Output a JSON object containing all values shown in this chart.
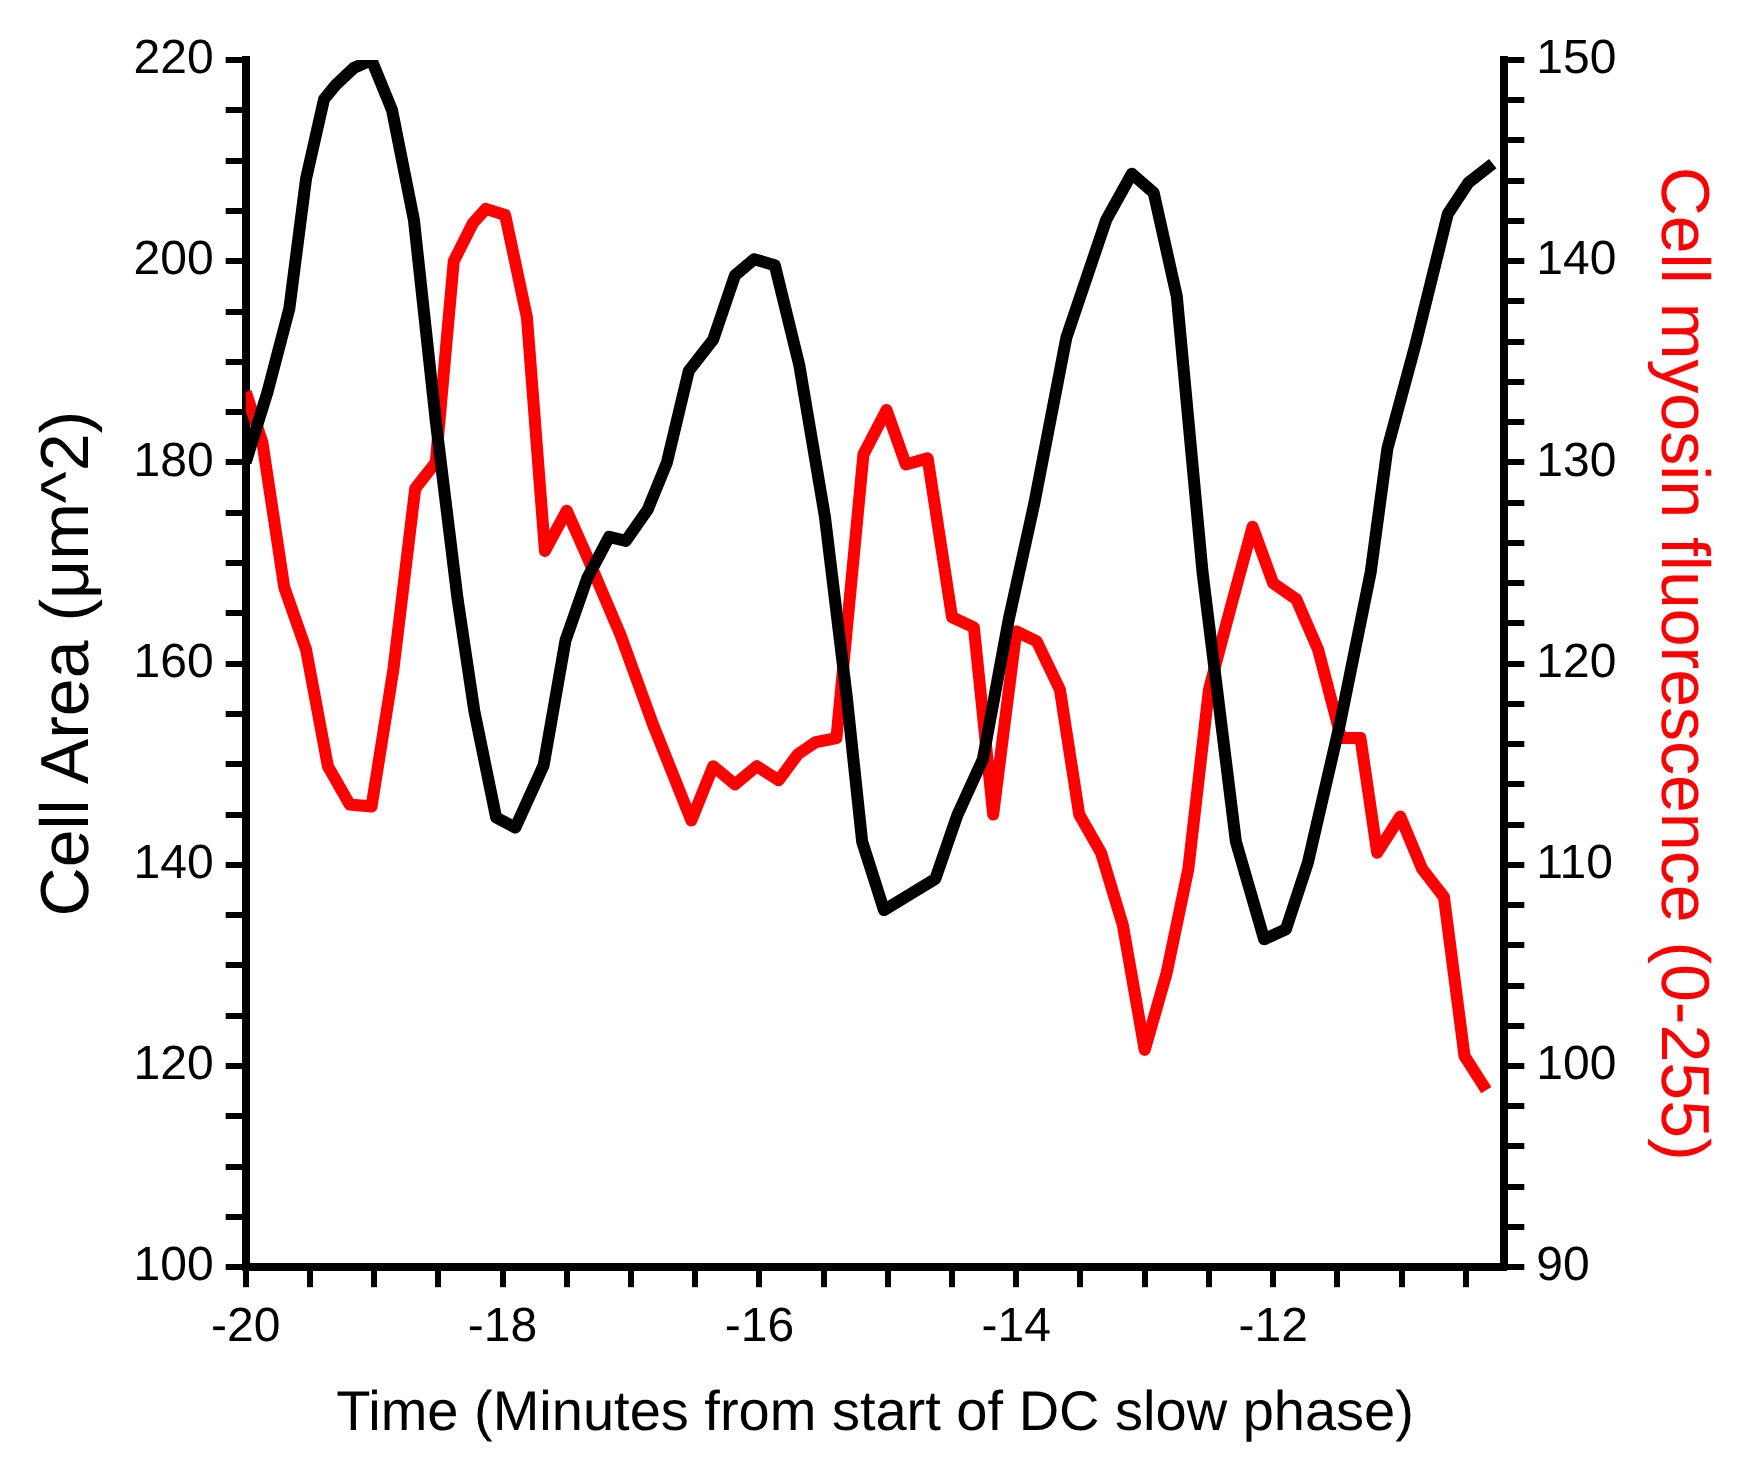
{
  "chart_data": {
    "type": "line",
    "xlabel": "Time (Minutes from start of DC slow phase)",
    "ylabel": "Cell Area (μm^2)",
    "y2label": "Cell myosin fluorescence (0-255)",
    "xlim": [
      -20,
      -10.2
    ],
    "xticks": [
      -20,
      {
        "value": -19.5,
        "label": null
      },
      {
        "value": -19,
        "label": null
      },
      {
        "value": -18.5,
        "label": null
      },
      -18,
      {
        "value": -17.5,
        "label": null
      },
      {
        "value": -17,
        "label": null
      },
      {
        "value": -16.5,
        "label": null
      },
      -16,
      {
        "value": -15.5,
        "label": null
      },
      {
        "value": -15,
        "label": null
      },
      {
        "value": -14.5,
        "label": null
      },
      -14,
      {
        "value": -13.5,
        "label": null
      },
      {
        "value": -13,
        "label": null
      },
      {
        "value": -12.5,
        "label": null
      },
      -12,
      {
        "value": -11.5,
        "label": null
      },
      {
        "value": -11,
        "label": null
      },
      {
        "value": -10.5,
        "label": null
      }
    ],
    "ylim": [
      100,
      220
    ],
    "yticks": [
      100,
      {
        "value": 105,
        "label": null
      },
      {
        "value": 110,
        "label": null
      },
      {
        "value": 115,
        "label": null
      },
      120,
      {
        "value": 125,
        "label": null
      },
      {
        "value": 130,
        "label": null
      },
      {
        "value": 135,
        "label": null
      },
      140,
      {
        "value": 145,
        "label": null
      },
      {
        "value": 150,
        "label": null
      },
      {
        "value": 155,
        "label": null
      },
      160,
      {
        "value": 165,
        "label": null
      },
      {
        "value": 170,
        "label": null
      },
      {
        "value": 175,
        "label": null
      },
      180,
      {
        "value": 185,
        "label": null
      },
      {
        "value": 190,
        "label": null
      },
      {
        "value": 195,
        "label": null
      },
      200,
      {
        "value": 205,
        "label": null
      },
      {
        "value": 210,
        "label": null
      },
      {
        "value": 215,
        "label": null
      },
      220
    ],
    "y2lim": [
      90,
      150
    ],
    "y2ticks": [
      90,
      {
        "value": 92,
        "label": null
      },
      {
        "value": 94,
        "label": null
      },
      {
        "value": 96,
        "label": null
      },
      {
        "value": 98,
        "label": null
      },
      100,
      {
        "value": 102,
        "label": null
      },
      {
        "value": 104,
        "label": null
      },
      {
        "value": 106,
        "label": null
      },
      {
        "value": 108,
        "label": null
      },
      110,
      {
        "value": 112,
        "label": null
      },
      {
        "value": 114,
        "label": null
      },
      {
        "value": 116,
        "label": null
      },
      {
        "value": 118,
        "label": null
      },
      120,
      {
        "value": 122,
        "label": null
      },
      {
        "value": 124,
        "label": null
      },
      {
        "value": 126,
        "label": null
      },
      {
        "value": 128,
        "label": null
      },
      130,
      {
        "value": 132,
        "label": null
      },
      {
        "value": 134,
        "label": null
      },
      {
        "value": 136,
        "label": null
      },
      {
        "value": 138,
        "label": null
      },
      140,
      {
        "value": 142,
        "label": null
      },
      {
        "value": 144,
        "label": null
      },
      {
        "value": 146,
        "label": null
      },
      {
        "value": 148,
        "label": null
      },
      150
    ],
    "grid": false,
    "legend": false,
    "marker": "none",
    "line_style": "solid",
    "series": [
      {
        "color": "#000000",
        "x": [
          -20,
          -19.83,
          -19.66,
          -19.53,
          -19.39,
          -19.3,
          -19.16,
          -19.02,
          -18.86,
          -18.69,
          -18.52,
          -18.35,
          -18.22,
          -18.05,
          -17.9,
          -17.68,
          -17.51,
          -17.34,
          -17.17,
          -17.04,
          -16.87,
          -16.72,
          -16.55,
          -16.36,
          -16.19,
          -16.04,
          -15.88,
          -15.69,
          -15.49,
          -15.32,
          -15.2,
          -15.03,
          -14.63,
          -14.46,
          -14.26,
          -14.06,
          -13.86,
          -13.61,
          -13.3,
          -13.1,
          -12.93,
          -12.75,
          -12.55,
          -12.29,
          -12.07,
          -11.9,
          -11.73,
          -11.48,
          -11.24,
          -11.11,
          -10.89,
          -10.64,
          -10.48,
          -10.29
        ],
        "values": [
          180,
          187,
          195.3,
          208.2,
          216.1,
          217.5,
          219.2,
          220,
          215,
          204.1,
          184.1,
          166.4,
          155.3,
          144.7,
          143.7,
          149.9,
          162.3,
          168.5,
          172.6,
          172.2,
          175.3,
          180,
          189.1,
          192.2,
          198.6,
          200.2,
          199.6,
          189.7,
          174.6,
          156.7,
          142.3,
          135.5,
          138.6,
          144.9,
          150.5,
          164.3,
          175.9,
          192.4,
          204.1,
          208.7,
          206.8,
          196.5,
          169.1,
          142.3,
          132.6,
          133.6,
          140.2,
          154,
          169.1,
          181.4,
          191.8,
          204.7,
          207.8,
          209.7
        ]
      },
      {
        "color": "#ff0000",
        "axis": "y2",
        "x": [
          -20,
          -19.87,
          -19.7,
          -19.53,
          -19.36,
          -19.19,
          -19.02,
          -18.85,
          -18.68,
          -18.52,
          -18.38,
          -18.23,
          -18.13,
          -17.98,
          -17.81,
          -17.67,
          -17.5,
          -17.34,
          -17.08,
          -16.83,
          -16.53,
          -16.36,
          -16.19,
          -16.02,
          -15.85,
          -15.7,
          -15.56,
          -15.4,
          -15.19,
          -15.01,
          -14.86,
          -14.69,
          -14.5,
          -14.33,
          -14.18,
          -14,
          -13.84,
          -13.66,
          -13.51,
          -13.34,
          -13.17,
          -13,
          -12.83,
          -12.66,
          -12.5,
          -12.33,
          -12.16,
          -12,
          -11.82,
          -11.65,
          -11.47,
          -11.32,
          -11.19,
          -11.01,
          -10.84,
          -10.67,
          -10.51,
          -10.34
        ],
        "values": [
          133.5,
          131,
          123.8,
          120.7,
          114.9,
          113,
          112.9,
          119.7,
          128.7,
          130,
          140,
          141.9,
          142.6,
          142.3,
          137.2,
          125.6,
          127.6,
          125.3,
          121.4,
          117,
          112.2,
          114.9,
          114,
          114.9,
          114.2,
          115.5,
          116.1,
          116.3,
          130.4,
          132.6,
          129.9,
          130.2,
          122.3,
          121.8,
          112.5,
          121.6,
          121.1,
          118.7,
          112.5,
          110.6,
          107,
          100.8,
          104.6,
          109.8,
          118.7,
          122.8,
          126.8,
          124,
          123.2,
          120.7,
          116.3,
          116.3,
          110.6,
          112.4,
          109.8,
          108.4,
          100.5,
          98.8
        ]
      }
    ]
  }
}
